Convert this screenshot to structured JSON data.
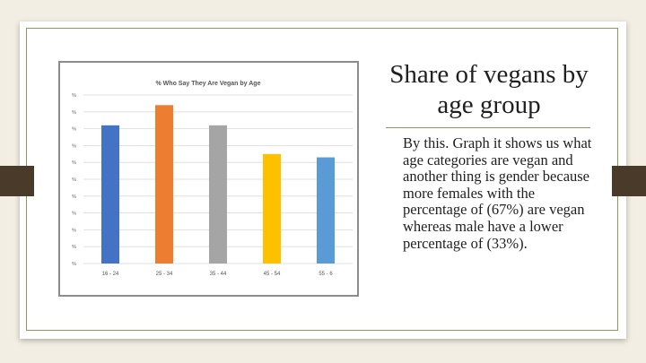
{
  "slide": {
    "title": "Share of vegans by age group",
    "body": "By this. Graph it shows us what age categories are vegan and another thing is gender because more females with the percentage of (67%) are vegan whereas male have a lower percentage of (33%)."
  },
  "chart_data": {
    "type": "bar",
    "title": "% Who Say They Are Vegan by Age",
    "categories": [
      "16 - 24",
      "25 - 34",
      "35 - 44",
      "45 - 54",
      "55 - 6"
    ],
    "values": [
      82,
      94,
      82,
      65,
      63
    ],
    "colors": [
      "#4472c4",
      "#ed7d31",
      "#a5a5a5",
      "#ffc000",
      "#5b9bd5"
    ],
    "ytick_labels": [
      "%",
      "%",
      "%",
      "%",
      "%",
      "%",
      "%",
      "%",
      "%",
      "%",
      "%"
    ],
    "ylim": [
      0,
      100
    ],
    "grid": true
  }
}
